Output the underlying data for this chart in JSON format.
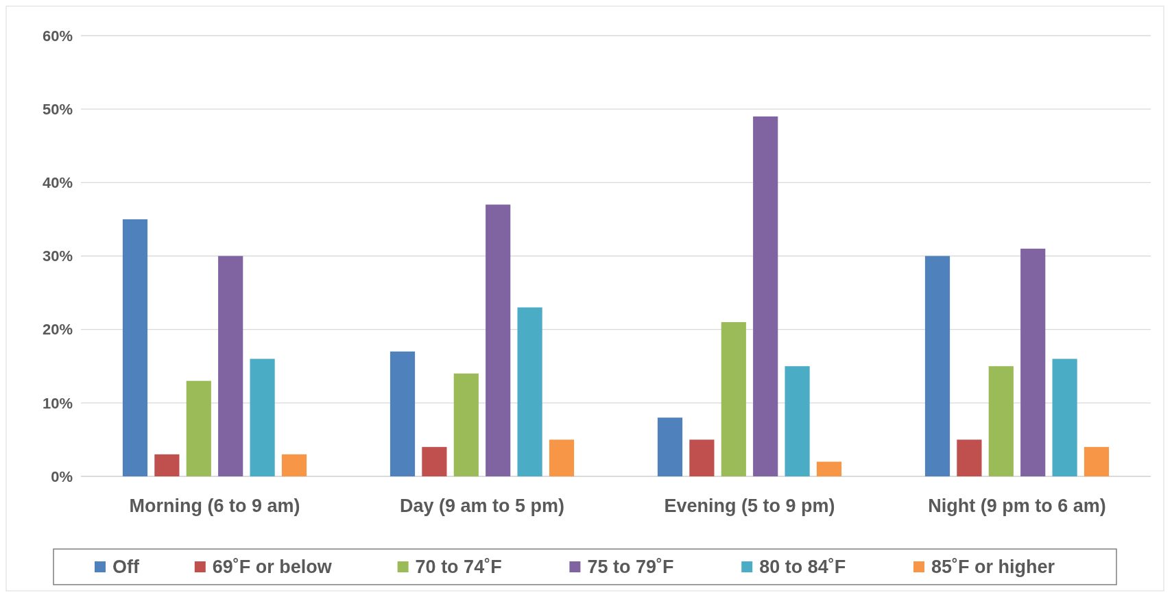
{
  "chart_data": {
    "type": "bar",
    "categories": [
      "Morning (6 to 9 am)",
      "Day (9 am to 5 pm)",
      "Evening (5 to 9 pm)",
      "Night (9 pm to 6 am)"
    ],
    "series": [
      {
        "name": "Off",
        "color": "#4f81bd",
        "values": [
          35,
          17,
          8,
          30
        ]
      },
      {
        "name": "69˚F or below",
        "color": "#c0504d",
        "values": [
          3,
          4,
          5,
          5
        ]
      },
      {
        "name": "70 to 74˚F",
        "color": "#9bbb59",
        "values": [
          13,
          14,
          21,
          15
        ]
      },
      {
        "name": "75 to 79˚F",
        "color": "#8064a2",
        "values": [
          30,
          37,
          49,
          31
        ]
      },
      {
        "name": "80 to 84˚F",
        "color": "#4bacc6",
        "values": [
          16,
          23,
          15,
          16
        ]
      },
      {
        "name": "85˚F or higher",
        "color": "#f79646",
        "values": [
          3,
          5,
          2,
          4
        ]
      }
    ],
    "ylim": [
      0,
      60
    ],
    "yticks": [
      {
        "value": 0,
        "label": "0%"
      },
      {
        "value": 10,
        "label": "10%"
      },
      {
        "value": 20,
        "label": "20%"
      },
      {
        "value": 30,
        "label": "30%"
      },
      {
        "value": 40,
        "label": "40%"
      },
      {
        "value": 50,
        "label": "50%"
      },
      {
        "value": 60,
        "label": "60%"
      }
    ],
    "grid": "y",
    "legend": "bottom"
  }
}
